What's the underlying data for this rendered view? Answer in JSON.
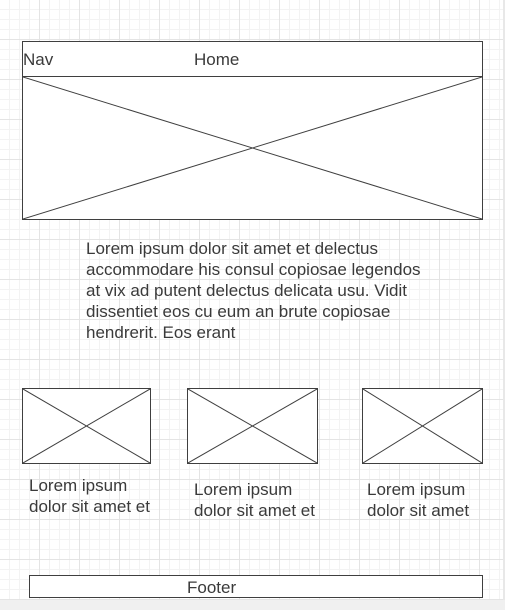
{
  "header": {
    "nav_label": "Nav",
    "home_label": "Home"
  },
  "hero": {
    "icon": "image-placeholder-icon"
  },
  "intro": {
    "text": "Lorem ipsum dolor sit amet et delectus accommodare his consul copiosae legendos at vix ad putent delectus delicata usu. Vidit dissentiet eos cu eum an brute copiosae hendrerit. Eos erant"
  },
  "cards": [
    {
      "icon": "image-placeholder-icon",
      "caption": "Lorem ipsum dolor sit amet et"
    },
    {
      "icon": "image-placeholder-icon",
      "caption": "Lorem ipsum dolor sit amet et"
    },
    {
      "icon": "image-placeholder-icon",
      "caption": "Lorem ipsum dolor sit amet"
    }
  ],
  "footer": {
    "label": "Footer"
  },
  "colors": {
    "line": "#3f3f3f",
    "text": "#3a3a3a",
    "grid": "#e4e4e4"
  }
}
